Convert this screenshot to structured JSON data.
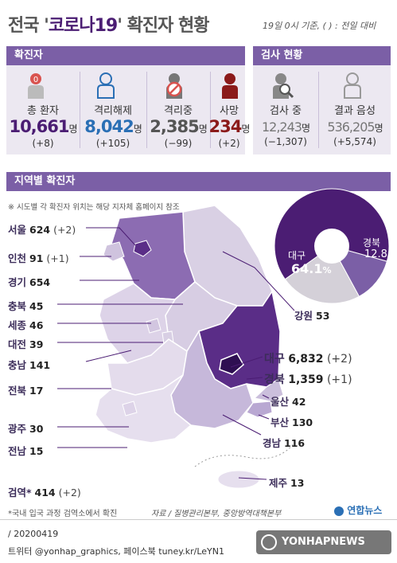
{
  "header": {
    "title_prefix": "전국 '",
    "title_quote": "코로나19",
    "title_suffix": "' 확진자 현황",
    "subtitle": "19일 0시 기준, ( ) : 전일 대비"
  },
  "sections": {
    "confirmed": "확진자",
    "tests": "검사 현황",
    "regional": "지역별 확진자"
  },
  "stats": [
    {
      "label": "총 환자",
      "value": "10,661",
      "unit": "명",
      "change": "(+8)",
      "color": "#4b1d73",
      "icon": "person-zero-icon"
    },
    {
      "label": "격리해제",
      "value": "8,042",
      "unit": "명",
      "change": "(+105)",
      "color": "#2a6fb5",
      "icon": "person-outline-icon"
    },
    {
      "label": "격리중",
      "value": "2,385",
      "unit": "명",
      "change": "(−99)",
      "color": "#555555",
      "icon": "person-prohibited-icon"
    },
    {
      "label": "사망",
      "value": "234",
      "unit": "명",
      "change": "(+2)",
      "color": "#8b1a1a",
      "icon": "person-dark-icon"
    }
  ],
  "tests": [
    {
      "label": "검사 중",
      "value": "12,243",
      "unit": "명",
      "change": "(−1,307)",
      "icon": "person-search-icon"
    },
    {
      "label": "결과 음성",
      "value": "536,205",
      "unit": "명",
      "change": "(+5,574)",
      "icon": "person-outline-icon"
    }
  ],
  "note": "※ 시도별 각 확진자 위치는 해당 지자체 홈페이지 참조",
  "regions_left": [
    {
      "name": "서울",
      "value": "624",
      "change": "(+2)"
    },
    {
      "name": "인천",
      "value": "91",
      "change": "(+1)"
    },
    {
      "name": "경기",
      "value": "654",
      "change": ""
    },
    {
      "name": "충북",
      "value": "45",
      "change": ""
    },
    {
      "name": "세종",
      "value": "46",
      "change": ""
    },
    {
      "name": "대전",
      "value": "39",
      "change": ""
    },
    {
      "name": "충남",
      "value": "141",
      "change": ""
    },
    {
      "name": "전북",
      "value": "17",
      "change": ""
    },
    {
      "name": "광주",
      "value": "30",
      "change": ""
    },
    {
      "name": "전남",
      "value": "15",
      "change": ""
    }
  ],
  "regions_right": [
    {
      "name": "강원",
      "value": "53",
      "change": ""
    },
    {
      "name": "대구",
      "value": "6,832",
      "change": "(+2)"
    },
    {
      "name": "경북",
      "value": "1,359",
      "change": "(+1)"
    },
    {
      "name": "울산",
      "value": "42",
      "change": ""
    },
    {
      "name": "부산",
      "value": "130",
      "change": ""
    },
    {
      "name": "경남",
      "value": "116",
      "change": ""
    },
    {
      "name": "제주",
      "value": "13",
      "change": ""
    }
  ],
  "quarantine": {
    "name": "검역*",
    "value": "414",
    "change": "(+2)"
  },
  "pie": {
    "daegu_label": "대구",
    "daegu_pct": "64.1",
    "pct_sign": "%",
    "gyeongbuk_label": "경북",
    "gyeongbuk_pct": "12.8",
    "daegu_share": 64.1,
    "gyeongbuk_share": 12.8,
    "colors": {
      "daegu": "#4b1d73",
      "gyeongbuk": "#7b5fa6",
      "rest": "#d4d0d8"
    }
  },
  "footer": {
    "footnote": "*국내 입국 과정 검역소에서 확진",
    "source": "자료 / 질병관리본부, 중앙방역대책본부",
    "brand": "연합뉴스",
    "date": "/ 20200419",
    "social": "트위터 @yonhap_graphics, 페이스북 tuney.kr/LeYN1",
    "watermark": "YONHAPNEWS"
  }
}
